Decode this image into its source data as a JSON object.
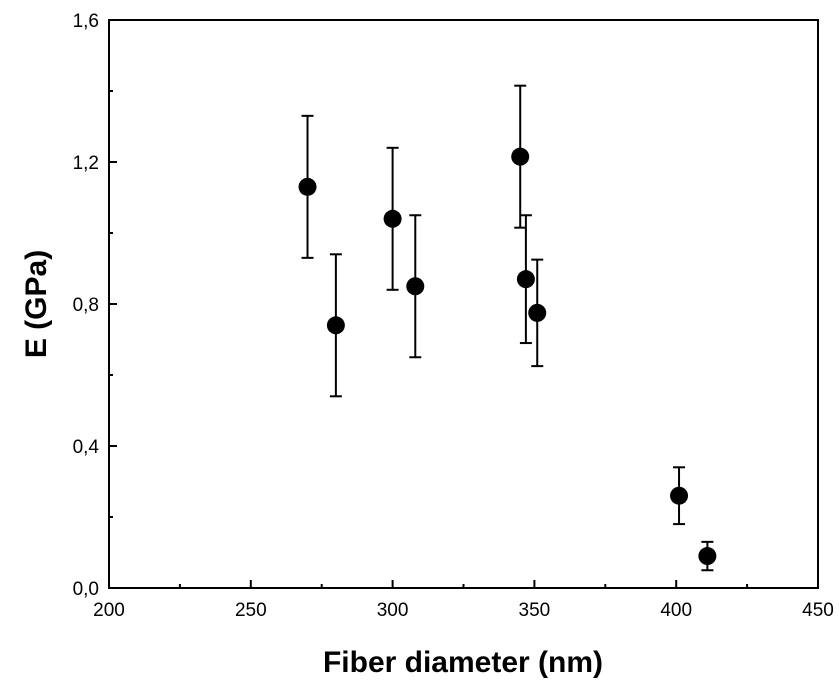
{
  "chart_data": {
    "type": "scatter",
    "title": "",
    "xlabel": "Fiber diameter (nm)",
    "ylabel": "E (GPa)",
    "xlim": [
      200,
      450
    ],
    "ylim": [
      0.0,
      1.6
    ],
    "x_ticks": [
      200,
      250,
      300,
      350,
      400,
      450
    ],
    "y_ticks": [
      0.0,
      0.4,
      0.8,
      1.2,
      1.6
    ],
    "x_tick_labels": [
      "200",
      "250",
      "300",
      "350",
      "400",
      "450"
    ],
    "y_tick_labels": [
      "0,0",
      "0,4",
      "0,8",
      "1,2",
      "1,6"
    ],
    "grid": false,
    "legend": false,
    "marker_color": "#000000",
    "points": [
      {
        "x": 270,
        "y": 1.13,
        "err": 0.2
      },
      {
        "x": 280,
        "y": 0.74,
        "err": 0.2
      },
      {
        "x": 300,
        "y": 1.04,
        "err": 0.2
      },
      {
        "x": 308,
        "y": 0.85,
        "err": 0.2
      },
      {
        "x": 345,
        "y": 1.215,
        "err": 0.2
      },
      {
        "x": 347,
        "y": 0.87,
        "err": 0.18
      },
      {
        "x": 351,
        "y": 0.775,
        "err": 0.15
      },
      {
        "x": 401,
        "y": 0.26,
        "err": 0.08
      },
      {
        "x": 411,
        "y": 0.09,
        "err": 0.04
      }
    ]
  }
}
